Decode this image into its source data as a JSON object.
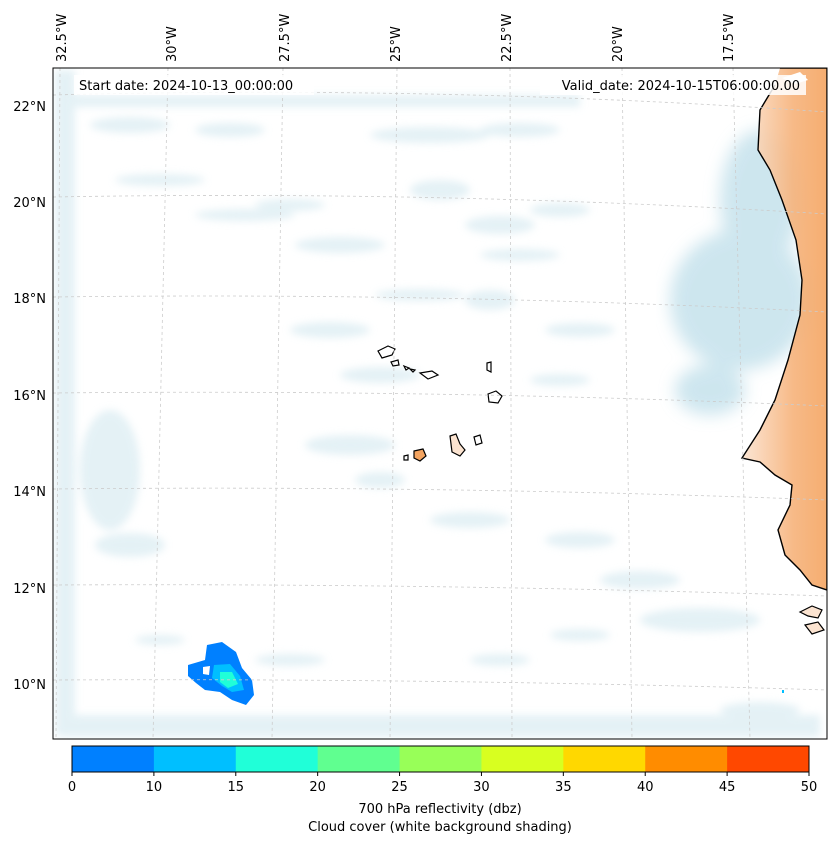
{
  "map": {
    "start_date": "Start date: 2024-10-13_00:00:00",
    "valid_date": "Valid_date: 2024-10-15T06:00:00.00",
    "extent": {
      "lon_min": -33.0,
      "lon_max": -15.5,
      "lat_min": 9.0,
      "lat_max": 22.8
    },
    "lon_ticks": [
      "32.5°W",
      "30°W",
      "27.5°W",
      "25°W",
      "22.5°W",
      "20°W",
      "17.5°W"
    ],
    "lat_ticks": [
      "22°N",
      "20°N",
      "18°N",
      "16°N",
      "14°N",
      "12°N",
      "10°N"
    ],
    "gridlines": true,
    "features": [
      "Cape Verde Islands",
      "West African coastline"
    ]
  },
  "colorbar": {
    "ticks": [
      "0",
      "10",
      "15",
      "20",
      "25",
      "30",
      "35",
      "40",
      "45",
      "50"
    ],
    "colors": [
      "#0080ff",
      "#00bfff",
      "#20ffd8",
      "#60ff90",
      "#98ff58",
      "#d8ff20",
      "#ffd800",
      "#ff8c00",
      "#ff4800"
    ],
    "label_line1": "700 hPa reflectivity (dbz)",
    "label_line2": "Cloud cover (white background shading)"
  },
  "colors": {
    "cloud": "#cfe6ee",
    "land_warm": "#f4a460",
    "land_light": "#fbe3d0",
    "grid": "#cccccc"
  }
}
